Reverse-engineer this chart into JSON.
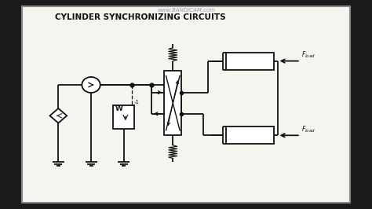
{
  "bg_outer": "#1a1a1a",
  "bg_inner": "#f5f5f0",
  "lc": "#111111",
  "title": "CYLINDER SYNCHRONIZING CIRCUITS",
  "bandicam": "www.BANDICAM.com",
  "lw": 1.3,
  "title_fs": 7.5,
  "annot_fs": 5.5,
  "border_color": "#555555",
  "gray_border": "#888888"
}
